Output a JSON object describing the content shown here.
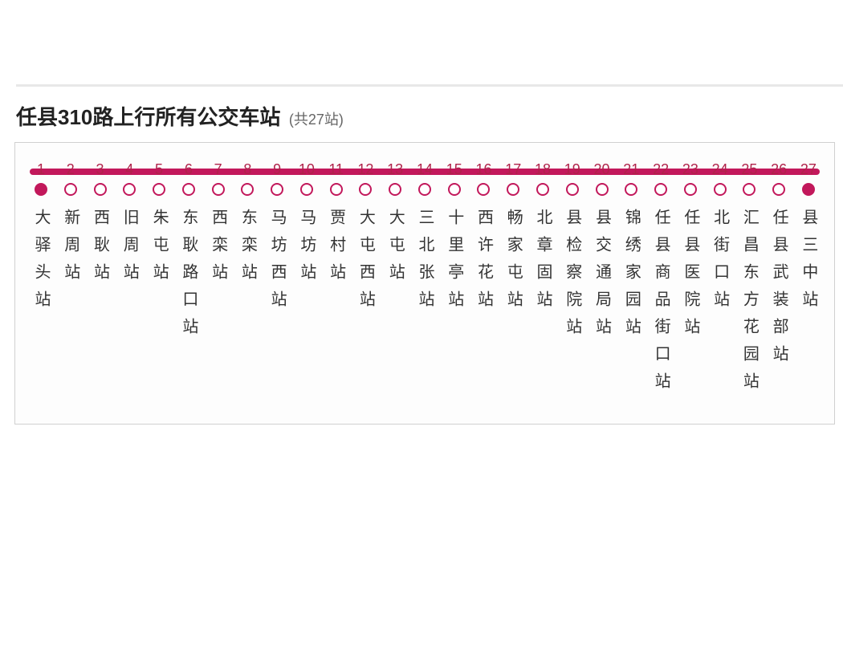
{
  "title": {
    "main": "任县310路上行所有公交车站",
    "sub": "(共27站)"
  },
  "route": {
    "type": "line",
    "line_color": "#c2185b",
    "dot_fill": "#ffffff",
    "dot_end_fill": "#c2185b",
    "number_color": "#b0224a",
    "name_color": "#333333",
    "border_color": "#d0d0d0",
    "stops": [
      {
        "n": "1",
        "name": "大驿头站"
      },
      {
        "n": "2",
        "name": "新周站"
      },
      {
        "n": "3",
        "name": "西耿站"
      },
      {
        "n": "4",
        "name": "旧周站"
      },
      {
        "n": "5",
        "name": "朱屯站"
      },
      {
        "n": "6",
        "name": "东耿路口站"
      },
      {
        "n": "7",
        "name": "西栾站"
      },
      {
        "n": "8",
        "name": "东栾站"
      },
      {
        "n": "9",
        "name": "马坊西站"
      },
      {
        "n": "10",
        "name": "马坊站"
      },
      {
        "n": "11",
        "name": "贾村站"
      },
      {
        "n": "12",
        "name": "大屯西站"
      },
      {
        "n": "13",
        "name": "大屯站"
      },
      {
        "n": "14",
        "name": "三北张站"
      },
      {
        "n": "15",
        "name": "十里亭站"
      },
      {
        "n": "16",
        "name": "西许花站"
      },
      {
        "n": "17",
        "name": "畅家屯站"
      },
      {
        "n": "18",
        "name": "北章固站"
      },
      {
        "n": "19",
        "name": "县检察院站"
      },
      {
        "n": "20",
        "name": "县交通局站"
      },
      {
        "n": "21",
        "name": "锦绣家园站"
      },
      {
        "n": "22",
        "name": "任县商品街口站"
      },
      {
        "n": "23",
        "name": "任县医院站"
      },
      {
        "n": "24",
        "name": "北街口站"
      },
      {
        "n": "25",
        "name": "汇昌东方花园站"
      },
      {
        "n": "26",
        "name": "任县武装部站"
      },
      {
        "n": "27",
        "name": "县三中站"
      }
    ]
  }
}
